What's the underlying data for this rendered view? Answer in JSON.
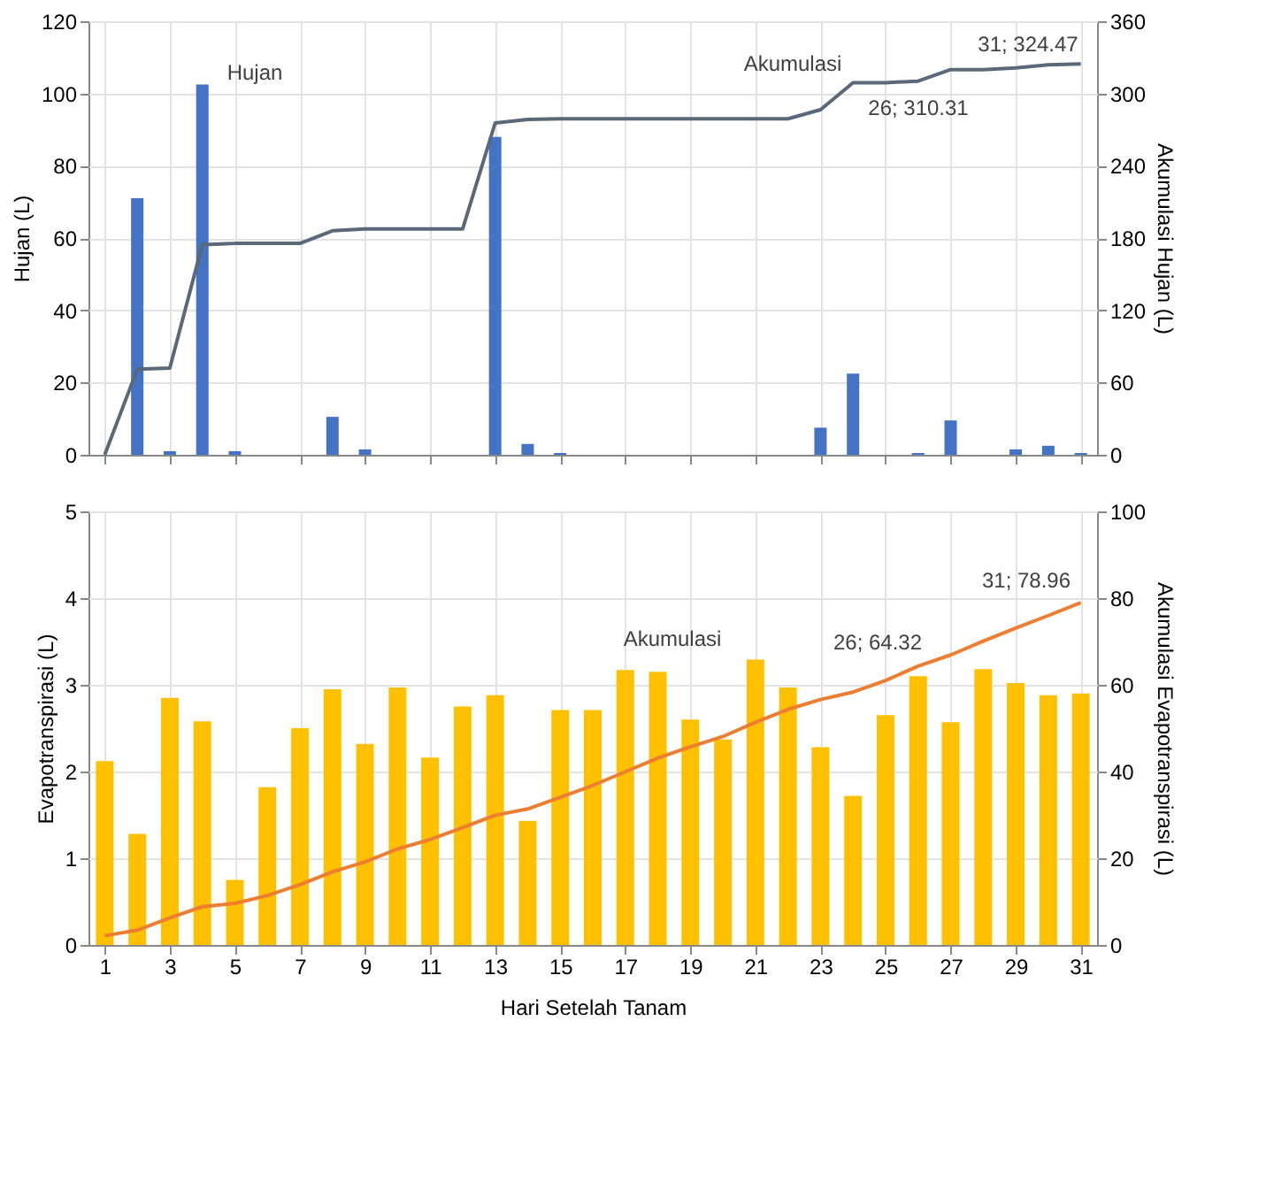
{
  "chart_data": [
    {
      "type": "bar",
      "x": [
        1,
        2,
        3,
        4,
        5,
        6,
        7,
        8,
        9,
        10,
        11,
        12,
        13,
        14,
        15,
        16,
        17,
        18,
        19,
        20,
        21,
        22,
        23,
        24,
        25,
        26,
        27,
        28,
        29,
        30,
        31
      ],
      "xlim": [
        0.5,
        31.5
      ],
      "xticks": [
        1,
        3,
        5,
        7,
        9,
        11,
        13,
        15,
        17,
        19,
        21,
        23,
        25,
        27,
        29,
        31
      ],
      "ylabel": "Hujan (L)",
      "y2label": "Akumulasi Hujan (L)",
      "ylim": [
        0,
        120
      ],
      "yticks": [
        0,
        20,
        40,
        60,
        80,
        100,
        120
      ],
      "y2lim": [
        0,
        360
      ],
      "y2ticks": [
        0,
        60,
        120,
        180,
        240,
        300,
        360
      ],
      "grid": true,
      "legend": false,
      "tick_labels": "y",
      "series": [
        {
          "color": "#4472c4",
          "values": [
            0,
            71,
            1,
            102.5,
            1,
            0,
            0,
            10.5,
            1.5,
            0,
            0,
            0,
            88,
            3,
            0.5,
            0,
            0,
            0,
            0,
            0,
            0,
            0,
            7.5,
            22.5,
            0,
            0.5,
            9.5,
            0,
            1.5,
            2.5,
            0.5
          ]
        },
        {
          "type": "line",
          "axis": "y2",
          "color": "#5a6878",
          "values": [
            0,
            71,
            72,
            174.5,
            175.5,
            175.5,
            175.5,
            186,
            187.5,
            187.5,
            187.5,
            187.5,
            275.5,
            278.5,
            279,
            279,
            279,
            279,
            279,
            279,
            279,
            279,
            286.5,
            309,
            309,
            310.31,
            319.8,
            319.8,
            321.3,
            323.8,
            324.47
          ]
        }
      ],
      "annotations": [
        "Hujan",
        "Akumulasi",
        "26; 310.31",
        "31; 324.47"
      ]
    },
    {
      "type": "bar",
      "x": [
        1,
        2,
        3,
        4,
        5,
        6,
        7,
        8,
        9,
        10,
        11,
        12,
        13,
        14,
        15,
        16,
        17,
        18,
        19,
        20,
        21,
        22,
        23,
        24,
        25,
        26,
        27,
        28,
        29,
        30,
        31
      ],
      "xlim": [
        0.5,
        31.5
      ],
      "xticks": [
        1,
        3,
        5,
        7,
        9,
        11,
        13,
        15,
        17,
        19,
        21,
        23,
        25,
        27,
        29,
        31
      ],
      "xlabel": "Hari Setelah Tanam",
      "ylabel": "Evapotranspirasi (L)",
      "y2label": "Akumulasi Evapotranspirasi (L)",
      "ylim": [
        0,
        5
      ],
      "yticks": [
        0,
        1,
        2,
        3,
        4,
        5
      ],
      "y2lim": [
        0,
        100
      ],
      "y2ticks": [
        0,
        20,
        40,
        60,
        80,
        100
      ],
      "grid": true,
      "legend": false,
      "series": [
        {
          "color": "#ffc000",
          "values": [
            2.12,
            1.28,
            2.85,
            2.58,
            0.75,
            1.82,
            2.5,
            2.95,
            2.32,
            2.97,
            2.16,
            2.75,
            2.88,
            1.43,
            2.71,
            2.71,
            3.17,
            3.15,
            2.6,
            2.37,
            3.29,
            2.97,
            2.28,
            1.72,
            2.65,
            3.1,
            2.57,
            3.18,
            3.02,
            2.88,
            2.9
          ]
        },
        {
          "type": "line",
          "axis": "y2",
          "color": "#ed7d31",
          "values": [
            2.12,
            3.4,
            6.25,
            8.83,
            9.58,
            11.4,
            13.9,
            16.85,
            19.17,
            22.14,
            24.3,
            27.05,
            29.93,
            31.36,
            34.07,
            36.78,
            39.95,
            43.1,
            45.7,
            48.07,
            51.36,
            54.33,
            56.61,
            58.33,
            60.98,
            64.32,
            66.89,
            70.07,
            73.09,
            75.97,
            78.96
          ]
        }
      ],
      "annotations": [
        "Akumulasi",
        "26; 64.32",
        "31; 78.96"
      ]
    }
  ]
}
